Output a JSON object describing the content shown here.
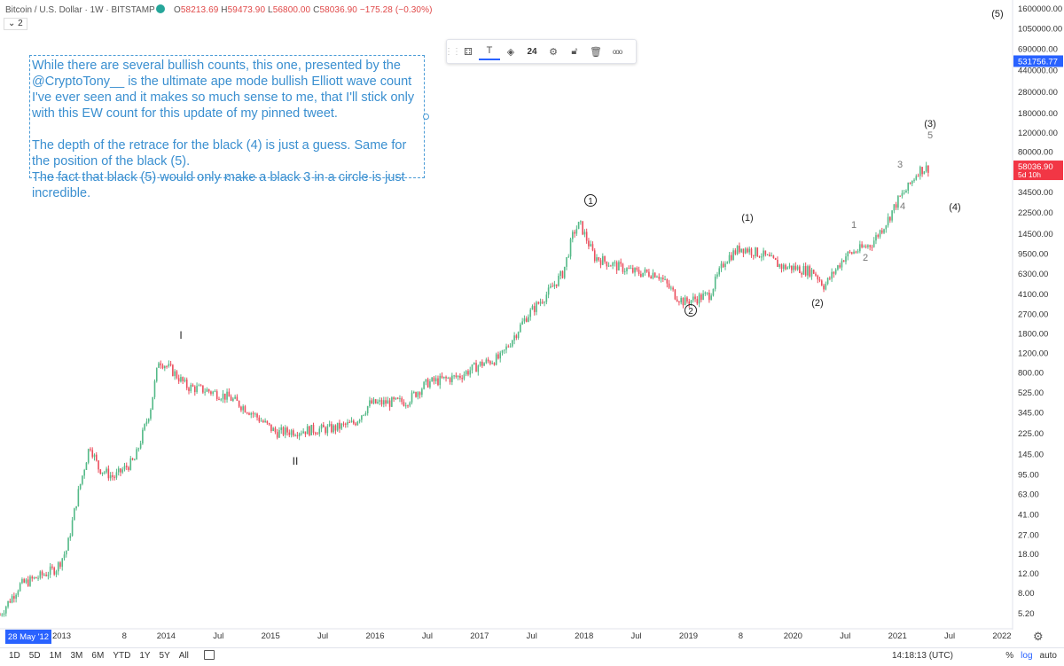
{
  "header": {
    "symbol": "Bitcoin / U.S. Dollar · 1W · BITSTAMP",
    "ohlc": {
      "o_label": "O",
      "o": "58213.69",
      "h_label": "H",
      "h": "59473.90",
      "l_label": "L",
      "l": "56800.00",
      "c_label": "C",
      "c": "58036.90",
      "change": "−175.28 (−0.30%)"
    },
    "collapse_label": "⌄ 2"
  },
  "toolbar": {
    "font_size": "24",
    "more_icon": "ooo"
  },
  "annotation": {
    "text": "While there are several bullish counts, this one, presented by the @CryptoTony__ is the ultimate ape mode bullish Elliott wave count I've ever seen and it makes so much sense to me, that I'll stick only with this EW count for this update of my pinned tweet.\n\nThe depth of the retrace for the black (4) is just a guess. Same for the position of the black (5).\nThe fact that black (5) would only make a black 3 in a circle is just incredible."
  },
  "colors": {
    "up": "#53b987",
    "down": "#eb4d5c",
    "price_tag": "#f23645",
    "crosshair_tag": "#2962ff",
    "annotation": "#3a8fd0"
  },
  "chart_data": {
    "type": "line",
    "title": "Bitcoin / U.S. Dollar · 1W · BITSTAMP",
    "scale": "log",
    "xlabel": "",
    "ylabel": "",
    "x_ticks": [
      "2013",
      "8",
      "2014",
      "Jul",
      "2015",
      "Jul",
      "2016",
      "Jul",
      "2017",
      "Jul",
      "2018",
      "Jul",
      "2019",
      "8",
      "2020",
      "Jul",
      "2021",
      "Jul",
      "2022"
    ],
    "x_start_label": "28 May '12",
    "y_ticks": [
      "1600000.00",
      "1050000.00",
      "690000.00",
      "440000.00",
      "280000.00",
      "180000.00",
      "120000.00",
      "80000.00",
      "53000.00",
      "34500.00",
      "22500.00",
      "14500.00",
      "9500.00",
      "6300.00",
      "4100.00",
      "2700.00",
      "1800.00",
      "1200.00",
      "800.00",
      "525.00",
      "345.00",
      "225.00",
      "145.00",
      "95.00",
      "63.00",
      "41.00",
      "27.00",
      "18.00",
      "12.00",
      "8.00",
      "5.20"
    ],
    "ylim": [
      4.5,
      1600000
    ],
    "price_tag": {
      "value": "58036.90",
      "countdown": "5d 10h"
    },
    "crosshair_tag": "531756.77",
    "series": [
      {
        "x": [
          2012.41,
          2012.6,
          2012.8,
          2012.95,
          2013.05,
          2013.15,
          2013.27,
          2013.35,
          2013.5,
          2013.7,
          2013.85,
          2013.93,
          2014.05,
          2014.2,
          2014.4,
          2014.6,
          2014.8,
          2015.05,
          2015.3,
          2015.6,
          2015.8,
          2015.95,
          2016.3,
          2016.5,
          2016.8,
          2017.0,
          2017.2,
          2017.45,
          2017.65,
          2017.8,
          2017.9,
          2017.96,
          2018.1,
          2018.3,
          2018.5,
          2018.7,
          2018.88,
          2018.96,
          2019.2,
          2019.35,
          2019.5,
          2019.7,
          2019.9,
          2020.0,
          2020.2,
          2020.3,
          2020.5,
          2020.75,
          2020.9,
          2021.0,
          2021.1,
          2021.2,
          2021.3
        ],
        "y": [
          5.1,
          9.5,
          11.5,
          13.5,
          20,
          60,
          180,
          110,
          90,
          130,
          380,
          1050,
          850,
          600,
          550,
          480,
          360,
          230,
          240,
          250,
          280,
          420,
          440,
          650,
          740,
          950,
          1100,
          2600,
          4200,
          6500,
          15000,
          18000,
          9000,
          7500,
          6500,
          6400,
          4000,
          3500,
          4100,
          8500,
          11000,
          9500,
          7300,
          7200,
          6600,
          4900,
          9200,
          11800,
          19000,
          29000,
          38000,
          55000,
          58036.9
        ]
      }
    ],
    "wave_labels": [
      "I",
      "II",
      "1",
      "2",
      "(1)",
      "(2)",
      "1",
      "2",
      "3",
      "4",
      "(3)",
      "5",
      "(4)",
      "(5)"
    ]
  },
  "bottom_bar": {
    "ranges": [
      "1D",
      "5D",
      "1M",
      "3M",
      "6M",
      "YTD",
      "1Y",
      "5Y",
      "All"
    ],
    "time": "14:18:13 (UTC)",
    "pct": "%",
    "log": "log",
    "auto": "auto"
  }
}
